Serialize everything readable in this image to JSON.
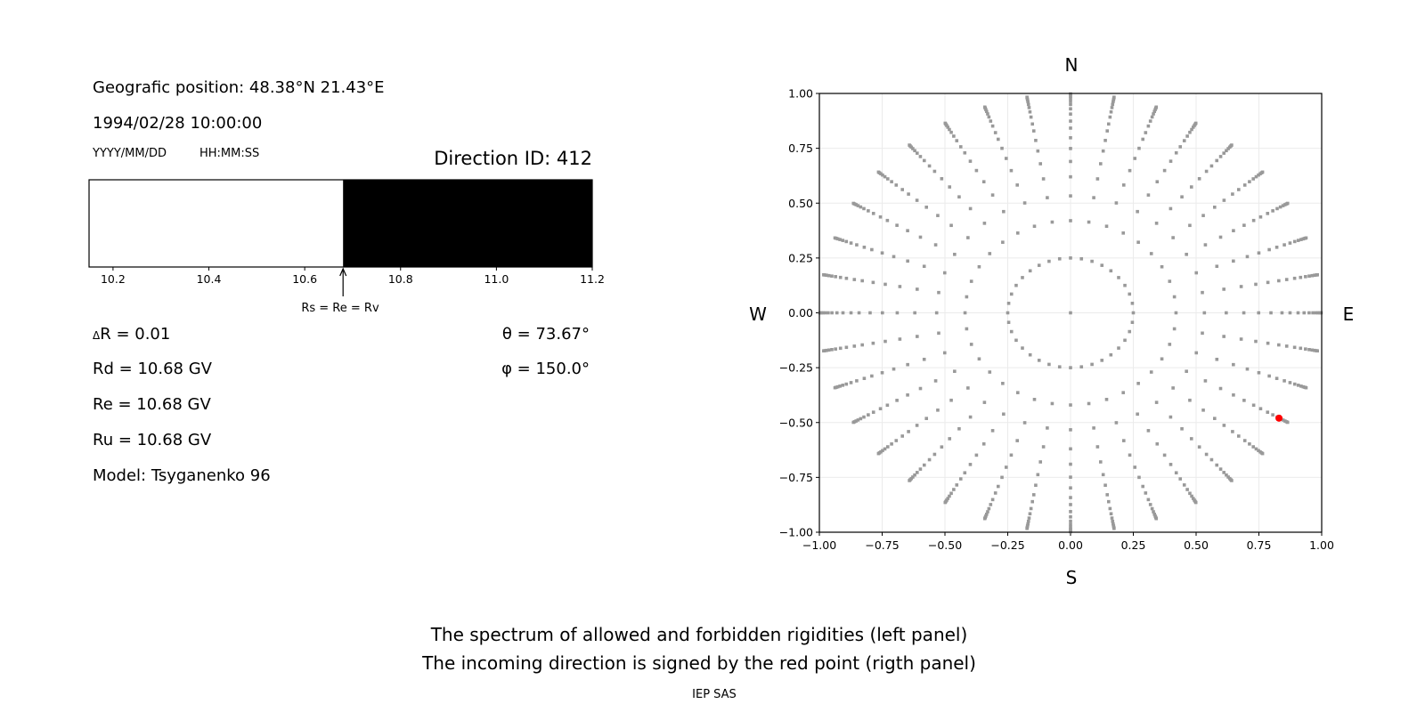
{
  "left_panel": {
    "position": "Geografic position: 48.38°N 21.43°E",
    "datetime": "1994/02/28 10:00:00",
    "date_format": "YYYY/MM/DD",
    "time_format": "HH:MM:SS",
    "direction_id": "Direction ID: 412",
    "delta_r": "R = 0.01",
    "delta_symbol": "Δ",
    "rd": "Rd = 10.68 GV",
    "re": "Re = 10.68 GV",
    "ru": "Ru = 10.68 GV",
    "model": "Model: Tsyganenko 96",
    "theta": "θ = 73.67°",
    "phi": "φ = 150.0°",
    "annotation": "Rs = Re = Rv"
  },
  "footer": {
    "line1": "The spectrum of allowed and forbidden rigidities (left panel)",
    "line2": "The incoming direction is signed by the red point (rigth panel)",
    "credit": "IEP SAS"
  },
  "chart_data": [
    {
      "type": "bar",
      "description_role": "rigidity spectrum",
      "xlim": [
        10.15,
        11.2
      ],
      "xticks": [
        "10.2",
        "10.4",
        "10.6",
        "10.8",
        "11.0",
        "11.2"
      ],
      "segments": [
        {
          "from": 10.15,
          "to": 10.68,
          "state": "allowed",
          "color": "#ffffff"
        },
        {
          "from": 10.68,
          "to": 11.2,
          "state": "forbidden",
          "color": "#000000"
        }
      ],
      "arrow_at": 10.68
    },
    {
      "type": "scatter",
      "xlim": [
        -1.0,
        1.0
      ],
      "ylim": [
        -1.0,
        1.0
      ],
      "xticks": [
        "−1.00",
        "−0.75",
        "−0.50",
        "−0.25",
        "0.00",
        "0.25",
        "0.50",
        "0.75",
        "1.00"
      ],
      "yticks": [
        "1.00",
        "0.75",
        "0.50",
        "0.25",
        "0.00",
        "−0.25",
        "−0.50",
        "−0.75",
        "−1.00"
      ],
      "grid": true,
      "compass": {
        "n": "N",
        "s": "S",
        "w": "W",
        "e": "E"
      },
      "grid_points": {
        "ray_step_deg": 10,
        "radii": [
          0.25,
          0.42,
          0.533,
          0.62,
          0.69,
          0.749,
          0.798,
          0.842,
          0.874,
          0.906,
          0.93,
          0.95,
          0.965,
          0.977,
          0.986,
          0.993,
          0.998
        ],
        "center_point": true,
        "color": "#999999"
      },
      "highlight_point": {
        "x": 0.83,
        "y": -0.48,
        "color": "#ff0000"
      }
    }
  ]
}
